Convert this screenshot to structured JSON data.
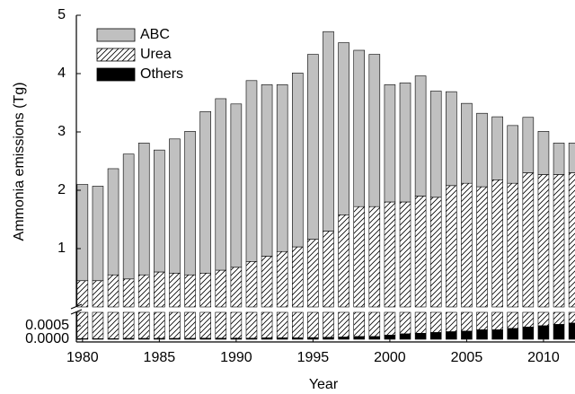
{
  "chart_data": {
    "type": "bar",
    "stacked": true,
    "broken_axis": true,
    "x_label": "Year",
    "y_label": "Ammonia emissions (Tg)",
    "x": [
      1980,
      1981,
      1982,
      1983,
      1984,
      1985,
      1986,
      1987,
      1988,
      1989,
      1990,
      1991,
      1992,
      1993,
      1994,
      1995,
      1996,
      1997,
      1998,
      1999,
      2000,
      2001,
      2002,
      2003,
      2004,
      2005,
      2006,
      2007,
      2008,
      2009,
      2010,
      2011,
      2012
    ],
    "xlim": [
      1979.6,
      2012.05
    ],
    "xticks": [
      1980,
      1985,
      1990,
      1995,
      2000,
      2005,
      2010
    ],
    "ylim": [
      0,
      5
    ],
    "yticks": [
      1,
      2,
      3,
      4,
      5
    ],
    "y2lim": [
      -0.0001,
      0.001
    ],
    "y2ticks": [
      {
        "value": 0,
        "label": "0.0000"
      },
      {
        "value": 0.0005,
        "label": "0.0005"
      }
    ],
    "legend": "upper left",
    "series": [
      {
        "name": "Others",
        "color": "#000000",
        "axis": "y2",
        "values": [
          2e-05,
          2e-05,
          2e-05,
          3e-05,
          3e-05,
          3e-05,
          3e-05,
          3e-05,
          4e-05,
          4e-05,
          4e-05,
          4e-05,
          5e-05,
          5e-05,
          5e-05,
          6e-05,
          7e-05,
          8e-05,
          0.0001,
          0.0001,
          0.00015,
          0.0002,
          0.00022,
          0.00025,
          0.00028,
          0.0003,
          0.00035,
          0.00035,
          0.0004,
          0.00045,
          0.0005,
          0.00055,
          0.0006
        ]
      },
      {
        "name": "Urea",
        "color": "#ffffff",
        "pattern": "hatch",
        "values": [
          0.45,
          0.45,
          0.55,
          0.48,
          0.55,
          0.6,
          0.58,
          0.55,
          0.58,
          0.63,
          0.68,
          0.78,
          0.87,
          0.95,
          1.03,
          1.16,
          1.3,
          1.58,
          1.72,
          1.72,
          1.8,
          1.8,
          1.9,
          1.88,
          2.08,
          2.12,
          2.06,
          2.18,
          2.12,
          2.3,
          2.27,
          2.27,
          2.3
        ]
      },
      {
        "name": "ABC",
        "color": "#c0c0c0",
        "values": [
          1.65,
          1.62,
          1.82,
          2.14,
          2.26,
          2.09,
          2.3,
          2.46,
          2.77,
          2.94,
          2.8,
          3.1,
          2.94,
          2.86,
          2.98,
          3.17,
          3.42,
          2.95,
          2.68,
          2.61,
          2.01,
          2.04,
          2.06,
          1.82,
          1.61,
          1.37,
          1.26,
          1.08,
          0.99,
          0.95,
          0.74,
          0.54,
          0.51
        ]
      }
    ]
  }
}
